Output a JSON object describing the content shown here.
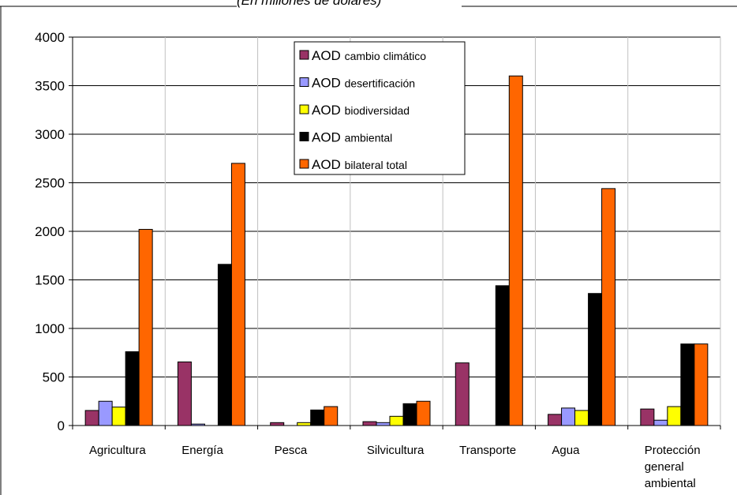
{
  "subtitle": "(En millones de dólares)",
  "chart_data": {
    "type": "bar",
    "title": "",
    "subtitle": "(En millones de dólares)",
    "xlabel": "",
    "ylabel": "",
    "ylim": [
      0,
      4000
    ],
    "yticks": [
      0,
      500,
      1000,
      1500,
      2000,
      2500,
      3000,
      3500,
      4000
    ],
    "grid": true,
    "legend_position": "top-center",
    "categories": [
      "Agricultura",
      "Energía",
      "Pesca",
      "Silvicultura",
      "Transporte",
      "Agua",
      "Protección general ambiental"
    ],
    "category_lines": [
      [
        "Agricultura"
      ],
      [
        "Energía"
      ],
      [
        "Pesca"
      ],
      [
        "Silvicultura"
      ],
      [
        "Transporte"
      ],
      [
        "Agua"
      ],
      [
        "Protección",
        "general",
        "ambiental"
      ]
    ],
    "series": [
      {
        "name": "AOD cambio climático",
        "prefix": "AOD",
        "suffix": "cambio climático",
        "color": "#993366",
        "values": [
          155,
          655,
          30,
          40,
          645,
          115,
          170
        ]
      },
      {
        "name": "AOD desertificación",
        "prefix": "AOD",
        "suffix": "desertificación",
        "color": "#9999ff",
        "values": [
          250,
          15,
          0,
          30,
          0,
          180,
          55
        ]
      },
      {
        "name": "AOD biodiversidad",
        "prefix": "AOD",
        "suffix": "biodiversidad",
        "color": "#ffff00",
        "values": [
          190,
          0,
          30,
          95,
          0,
          155,
          195
        ]
      },
      {
        "name": "AOD ambiental",
        "prefix": "AOD",
        "suffix": "ambiental",
        "color": "#000000",
        "values": [
          760,
          1660,
          160,
          225,
          1440,
          1360,
          840
        ]
      },
      {
        "name": "AOD bilateral total",
        "prefix": "AOD",
        "suffix": "bilateral total",
        "color": "#ff6600",
        "values": [
          2020,
          2700,
          195,
          250,
          3600,
          2440,
          840
        ]
      }
    ]
  }
}
